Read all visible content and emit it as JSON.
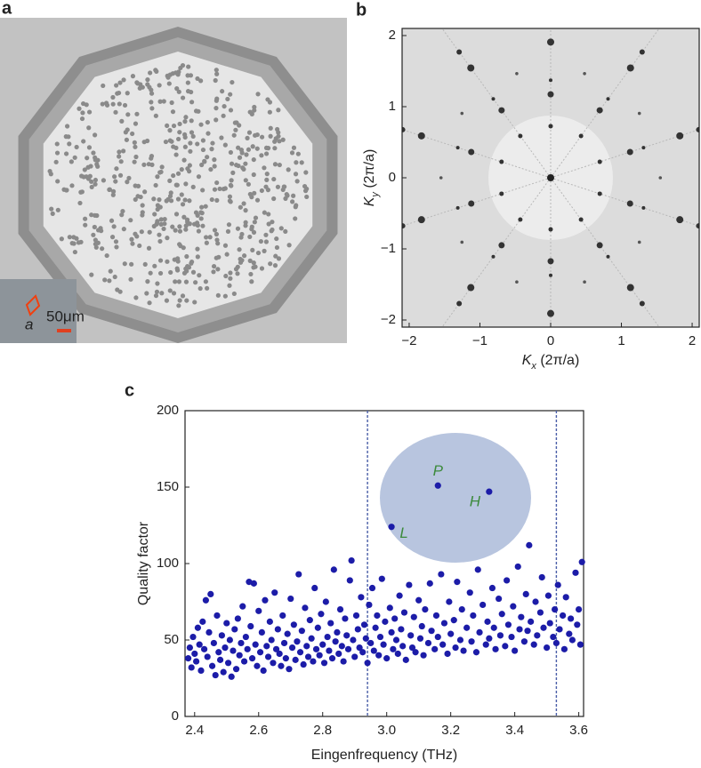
{
  "micrograph": {
    "panel_label": "a",
    "inset_label": "a",
    "scale_bar": "50μm"
  },
  "chart_data": [
    {
      "type": "fft",
      "panel_label": "b",
      "xlabel": {
        "main": "K",
        "sub": "x",
        "unit": " (2π/a)"
      },
      "ylabel": {
        "main": "K",
        "sub": "y",
        "unit": " (2π/a)"
      },
      "xlim": [
        -2.1,
        2.1
      ],
      "ylim": [
        -2.1,
        2.1
      ],
      "xticks": [
        {
          "value": -2,
          "label": "−2"
        },
        {
          "value": -1,
          "label": "−1"
        },
        0,
        1,
        2
      ],
      "yticks": [
        {
          "value": -2,
          "label": "−2"
        },
        {
          "value": -1,
          "label": "−1"
        },
        0,
        1,
        2
      ]
    },
    {
      "type": "scatter",
      "panel_label": "c",
      "color": "#1c1ca8",
      "xlabel": "Eingenfrequency (THz)",
      "ylabel": "Quality factor",
      "xlim": [
        2.37,
        3.615
      ],
      "ylim": [
        0,
        200
      ],
      "xticks": [
        2.4,
        2.6,
        2.8,
        {
          "value": 3,
          "label": "3.0"
        },
        3.2,
        3.4,
        3.6
      ],
      "yticks": [
        0,
        50,
        100,
        150,
        200
      ],
      "vlines": [
        2.94,
        3.53
      ],
      "labeled_points": [
        {
          "label": "P",
          "x": 3.16,
          "y": 151
        },
        {
          "label": "H",
          "x": 3.32,
          "y": 147
        },
        {
          "label": "L",
          "x": 3.015,
          "y": 124
        }
      ],
      "x": [
        2.38,
        2.385,
        2.39,
        2.395,
        2.4,
        2.405,
        2.41,
        2.415,
        2.42,
        2.425,
        2.43,
        2.435,
        2.44,
        2.445,
        2.45,
        2.455,
        2.46,
        2.465,
        2.47,
        2.475,
        2.48,
        2.485,
        2.49,
        2.495,
        2.5,
        2.505,
        2.51,
        2.515,
        2.52,
        2.525,
        2.53,
        2.535,
        2.54,
        2.545,
        2.55,
        2.555,
        2.56,
        2.565,
        2.57,
        2.575,
        2.58,
        2.585,
        2.59,
        2.595,
        2.6,
        2.605,
        2.61,
        2.615,
        2.62,
        2.625,
        2.63,
        2.635,
        2.64,
        2.645,
        2.65,
        2.655,
        2.66,
        2.665,
        2.67,
        2.675,
        2.68,
        2.685,
        2.69,
        2.695,
        2.7,
        2.705,
        2.71,
        2.715,
        2.72,
        2.725,
        2.73,
        2.735,
        2.74,
        2.745,
        2.75,
        2.755,
        2.76,
        2.765,
        2.77,
        2.775,
        2.78,
        2.785,
        2.79,
        2.795,
        2.8,
        2.805,
        2.81,
        2.815,
        2.82,
        2.825,
        2.83,
        2.835,
        2.84,
        2.845,
        2.85,
        2.855,
        2.86,
        2.865,
        2.87,
        2.875,
        2.88,
        2.885,
        2.89,
        2.895,
        2.9,
        2.905,
        2.91,
        2.915,
        2.92,
        2.925,
        2.93,
        2.935,
        2.94,
        2.945,
        2.95,
        2.955,
        2.96,
        2.965,
        2.97,
        2.975,
        2.98,
        2.985,
        2.99,
        2.995,
        3.0,
        3.01,
        3.015,
        3.02,
        3.025,
        3.03,
        3.035,
        3.04,
        3.045,
        3.05,
        3.055,
        3.06,
        3.07,
        3.075,
        3.08,
        3.085,
        3.09,
        3.1,
        3.105,
        3.11,
        3.115,
        3.12,
        3.13,
        3.135,
        3.14,
        3.15,
        3.155,
        3.16,
        3.17,
        3.175,
        3.18,
        3.19,
        3.195,
        3.2,
        3.21,
        3.215,
        3.22,
        3.23,
        3.235,
        3.24,
        3.25,
        3.26,
        3.265,
        3.27,
        3.28,
        3.285,
        3.29,
        3.3,
        3.31,
        3.315,
        3.32,
        3.33,
        3.335,
        3.34,
        3.35,
        3.355,
        3.36,
        3.37,
        3.375,
        3.38,
        3.39,
        3.395,
        3.4,
        3.41,
        3.415,
        3.42,
        3.43,
        3.435,
        3.44,
        3.445,
        3.45,
        3.46,
        3.465,
        3.47,
        3.48,
        3.485,
        3.49,
        3.5,
        3.505,
        3.51,
        3.52,
        3.525,
        3.53,
        3.535,
        3.54,
        3.55,
        3.555,
        3.56,
        3.57,
        3.575,
        3.58,
        3.59,
        3.595,
        3.6,
        3.605,
        3.61
      ],
      "y": [
        38,
        45,
        32,
        52,
        41,
        36,
        58,
        47,
        30,
        62,
        44,
        76,
        39,
        55,
        80,
        33,
        48,
        27,
        66,
        42,
        37,
        53,
        29,
        45,
        61,
        35,
        50,
        26,
        43,
        57,
        31,
        64,
        40,
        48,
        72,
        36,
        52,
        44,
        88,
        59,
        38,
        87,
        47,
        33,
        69,
        42,
        55,
        30,
        76,
        46,
        39,
        62,
        50,
        35,
        81,
        44,
        57,
        41,
        33,
        66,
        48,
        38,
        54,
        31,
        77,
        45,
        60,
        37,
        49,
        93,
        42,
        56,
        34,
        71,
        46,
        39,
        63,
        51,
        36,
        84,
        44,
        58,
        40,
        67,
        47,
        35,
        75,
        52,
        43,
        61,
        38,
        96,
        49,
        55,
        41,
        70,
        46,
        36,
        64,
        53,
        44,
        89,
        102,
        50,
        39,
        66,
        57,
        45,
        78,
        42,
        60,
        51,
        35,
        73,
        48,
        84,
        43,
        58,
        66,
        40,
        52,
        90,
        47,
        62,
        38,
        71,
        55,
        44,
        64,
        50,
        41,
        79,
        57,
        46,
        68,
        37,
        86,
        53,
        45,
        65,
        42,
        76,
        51,
        59,
        40,
        70,
        48,
        87,
        56,
        44,
        66,
        52,
        93,
        47,
        61,
        41,
        75,
        54,
        63,
        45,
        88,
        50,
        70,
        43,
        58,
        81,
        49,
        66,
        42,
        96,
        55,
        73,
        47,
        62,
        51,
        84,
        58,
        44,
        77,
        53,
        67,
        46,
        89,
        60,
        52,
        72,
        43,
        98,
        57,
        65,
        49,
        80,
        56,
        112,
        62,
        47,
        75,
        53,
        68,
        91,
        58,
        45,
        79,
        61,
        52,
        70,
        48,
        86,
        57,
        66,
        44,
        78,
        54,
        64,
        50,
        94,
        60,
        70,
        47,
        101
      ]
    }
  ]
}
